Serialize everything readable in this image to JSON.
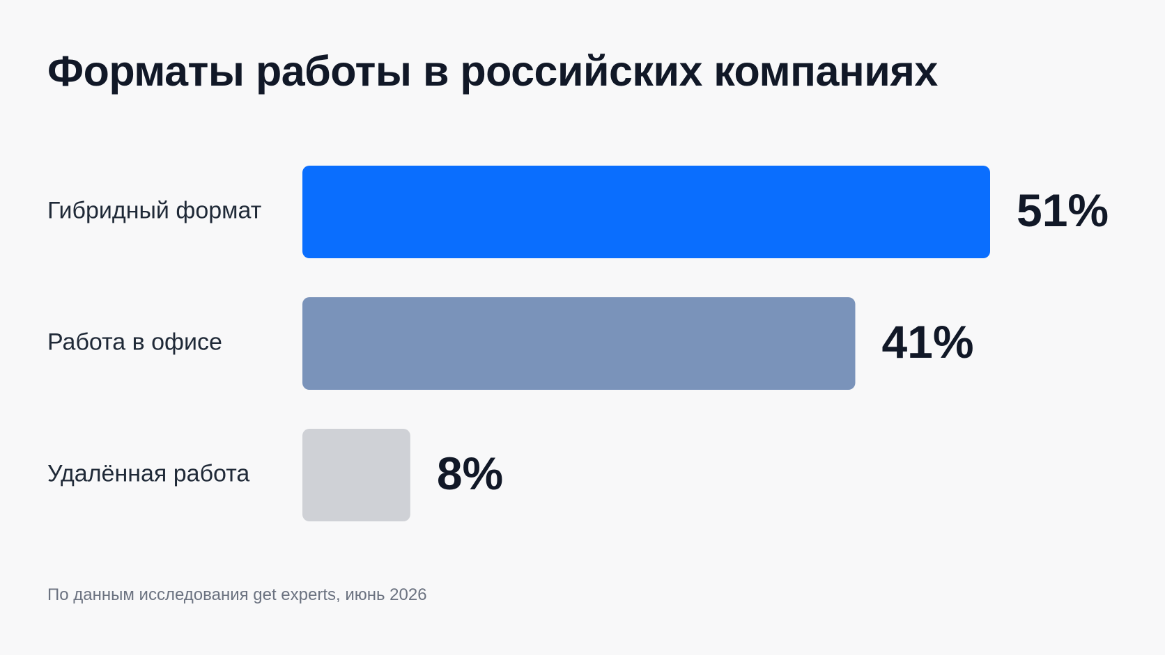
{
  "chart_data": {
    "type": "bar",
    "orientation": "horizontal",
    "title": "Форматы работы в российских компаниях",
    "categories": [
      "Гибридный формат",
      "Работа в офисе",
      "Удалённая работа"
    ],
    "values": [
      51,
      41,
      8
    ],
    "value_labels": [
      "51%",
      "41%",
      "8%"
    ],
    "colors": [
      "#0a6efe",
      "#7a93ba",
      "#cfd1d6"
    ],
    "xlim": [
      0,
      51
    ],
    "grid": false,
    "legend": "none"
  },
  "source": "По данным исследования get experts, июнь 2026",
  "colors": {
    "background": "#f8f8f9",
    "text": "#111827",
    "muted_text": "#6b7280"
  }
}
